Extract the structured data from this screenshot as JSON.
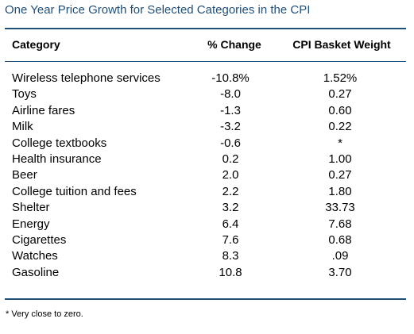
{
  "title": "One Year Price Growth for Selected Categories in the CPI",
  "headers": {
    "category": "Category",
    "change": "% Change",
    "weight": "CPI Basket Weight"
  },
  "rows": [
    {
      "category": "Wireless telephone services",
      "change": "-10.8%",
      "weight": "1.52%"
    },
    {
      "category": "Toys",
      "change": "-8.0",
      "weight": "0.27"
    },
    {
      "category": "Airline fares",
      "change": "-1.3",
      "weight": "0.60"
    },
    {
      "category": "Milk",
      "change": "-3.2",
      "weight": "0.22"
    },
    {
      "category": "College textbooks",
      "change": "-0.6",
      "weight": "*"
    },
    {
      "category": "Health insurance",
      "change": "0.2",
      "weight": "1.00"
    },
    {
      "category": "Beer",
      "change": "2.0",
      "weight": "0.27"
    },
    {
      "category": "College tuition and fees",
      "change": "2.2",
      "weight": "1.80"
    },
    {
      "category": "Shelter",
      "change": "3.2",
      "weight": "33.73"
    },
    {
      "category": "Energy",
      "change": "6.4",
      "weight": "7.68"
    },
    {
      "category": "Cigarettes",
      "change": "7.6",
      "weight": "0.68"
    },
    {
      "category": "Watches",
      "change": "8.3",
      "weight": ".09"
    },
    {
      "category": "Gasoline",
      "change": "10.8",
      "weight": "3.70"
    }
  ],
  "footnote": "* Very close to zero.",
  "colors": {
    "title": "#1f4e79",
    "rule": "#1f4e79"
  }
}
